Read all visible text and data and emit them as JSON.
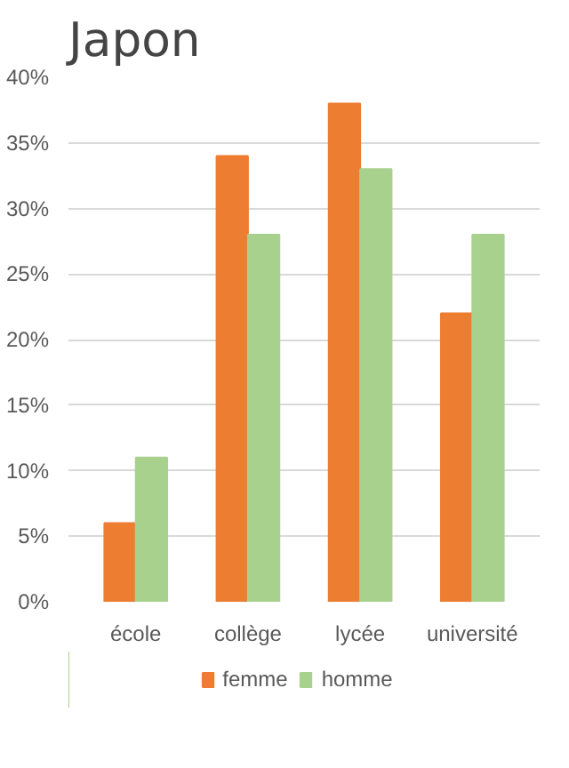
{
  "chart_data": {
    "type": "bar",
    "title": "Japon",
    "categories": [
      "école",
      "collège",
      "lycée",
      "université"
    ],
    "series": [
      {
        "name": "femme",
        "color": "#ed7d31",
        "values": [
          6,
          34,
          38,
          22
        ]
      },
      {
        "name": "homme",
        "color": "#a9d18e",
        "values": [
          11,
          28,
          33,
          28
        ]
      }
    ],
    "ylim": [
      0,
      40
    ],
    "yticks": [
      {
        "value": 0,
        "label": "0%"
      },
      {
        "value": 5,
        "label": "5%"
      },
      {
        "value": 10,
        "label": "10%"
      },
      {
        "value": 15,
        "label": "15%"
      },
      {
        "value": 20,
        "label": "20%"
      },
      {
        "value": 25,
        "label": "25%"
      },
      {
        "value": 30,
        "label": "30%"
      },
      {
        "value": 35,
        "label": "35%"
      },
      {
        "value": 40,
        "label": "40%"
      }
    ],
    "grid": "y",
    "legend": "bottom"
  }
}
